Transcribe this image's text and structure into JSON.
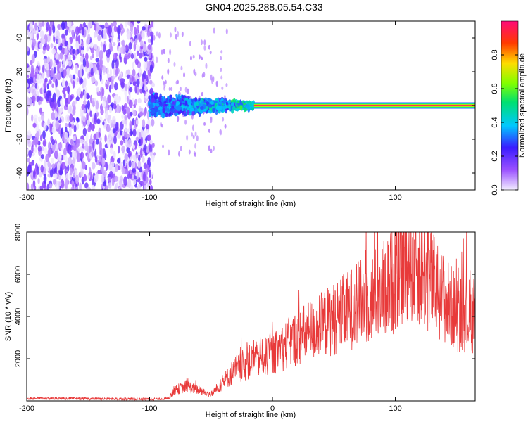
{
  "title": "GN04.2025.288.05.54.C33",
  "chart_data": [
    {
      "type": "heatmap",
      "xlabel": "Height of straight line (km)",
      "ylabel": "Frequency (Hz)",
      "xlim": [
        -200,
        165
      ],
      "ylim": [
        -50,
        50
      ],
      "x_ticks": [
        "-200",
        "-100",
        "0",
        "100"
      ],
      "y_ticks": [
        "-40",
        "-20",
        "0",
        "20",
        "40"
      ],
      "colorbar": {
        "label": "Normalized spectral amplitude",
        "range": [
          0,
          1
        ],
        "ticks": [
          "0.0",
          "0.2",
          "0.4",
          "0.6",
          "0.8"
        ]
      },
      "features": {
        "noise_region_x": [
          -200,
          -97
        ],
        "spread_signal_x": [
          -100,
          -15
        ],
        "spread_signal_freq_halfwidth_hz": 8,
        "carrier_line_x": [
          -15,
          165
        ],
        "carrier_line_freq_hz": 0,
        "carrier_amplitude": 1.0
      }
    },
    {
      "type": "line",
      "xlabel": "Height of straight line (km)",
      "ylabel": "SNR (10 * v/v)",
      "xlim": [
        -200,
        165
      ],
      "ylim": [
        0,
        8000
      ],
      "x_ticks": [
        "-200",
        "-100",
        "0",
        "100"
      ],
      "y_ticks": [
        "2000",
        "4000",
        "6000",
        "8000"
      ],
      "series": [
        {
          "color": "#e83a3a",
          "envelope_x": [
            -200,
            -150,
            -100,
            -85,
            -80,
            -70,
            -60,
            -50,
            -40,
            -30,
            -20,
            -10,
            0,
            10,
            20,
            30,
            40,
            50,
            60,
            70,
            80,
            90,
            100,
            110,
            120,
            130,
            140,
            150,
            165
          ],
          "envelope_y": [
            100,
            80,
            60,
            80,
            500,
            700,
            500,
            300,
            900,
            1500,
            1800,
            2000,
            2200,
            2600,
            3000,
            3300,
            3600,
            3900,
            4200,
            4600,
            4900,
            5300,
            5800,
            6800,
            6300,
            5600,
            4800,
            4200,
            4000
          ]
        }
      ]
    }
  ]
}
